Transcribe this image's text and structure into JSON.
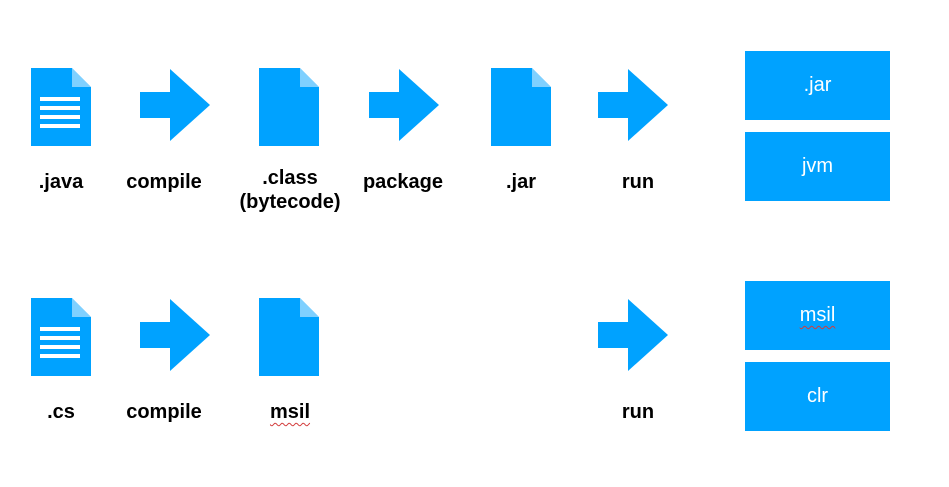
{
  "colors": {
    "accent": "#00a2ff",
    "text": "#000000",
    "box_text": "#ffffff"
  },
  "java_row": {
    "steps": [
      {
        "icon": "document-lines-icon",
        "label": ".java"
      },
      {
        "icon": "arrow-right-icon",
        "label": "compile"
      },
      {
        "icon": "document-icon",
        "label_line1": ".class",
        "label_line2": "(bytecode)"
      },
      {
        "icon": "arrow-right-icon",
        "label": "package"
      },
      {
        "icon": "document-icon",
        "label": ".jar"
      },
      {
        "icon": "arrow-right-icon",
        "label": "run"
      }
    ],
    "stack": [
      ".jar",
      "jvm"
    ]
  },
  "cs_row": {
    "steps": [
      {
        "icon": "document-lines-icon",
        "label": ".cs"
      },
      {
        "icon": "arrow-right-icon",
        "label": "compile"
      },
      {
        "icon": "document-icon",
        "label": "msil"
      },
      {
        "icon": "arrow-right-icon",
        "label": "run"
      }
    ],
    "stack": [
      "msil",
      "clr"
    ]
  }
}
